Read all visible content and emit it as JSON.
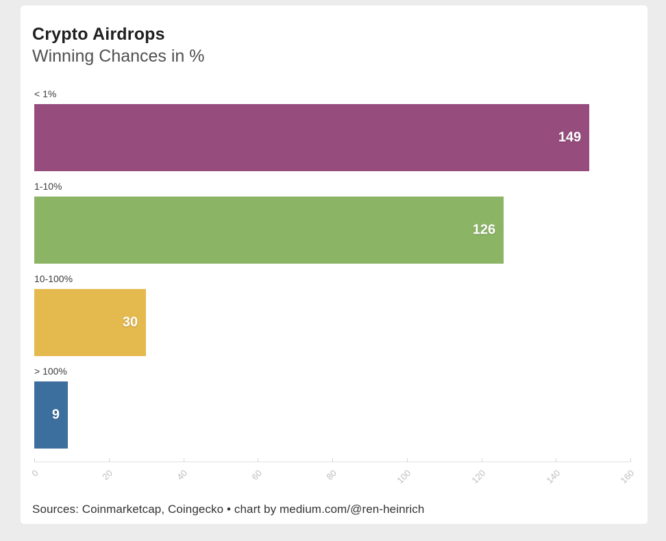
{
  "header": {
    "title": "Crypto Airdrops",
    "subtitle": "Winning Chances in %"
  },
  "chart_data": {
    "type": "bar",
    "orientation": "horizontal",
    "title": "Crypto Airdrops",
    "subtitle": "Winning Chances in %",
    "categories": [
      "< 1%",
      "1-10%",
      "10-100%",
      "> 100%"
    ],
    "values": [
      149,
      126,
      30,
      9
    ],
    "bar_colors": [
      "#964d7d",
      "#8cb465",
      "#e4b94e",
      "#3d6f9e"
    ],
    "value_label_color": "#ffffff",
    "value_labels_inside_right": true,
    "xlabel": "",
    "ylabel": "",
    "xlim": [
      0,
      160
    ],
    "xticks": [
      0,
      20,
      40,
      60,
      80,
      100,
      120,
      140,
      160
    ],
    "grid": false,
    "legend": "none"
  },
  "footer": {
    "text": "Sources: Coinmarketcap, Coingecko • chart by medium.com/@ren-heinrich"
  }
}
